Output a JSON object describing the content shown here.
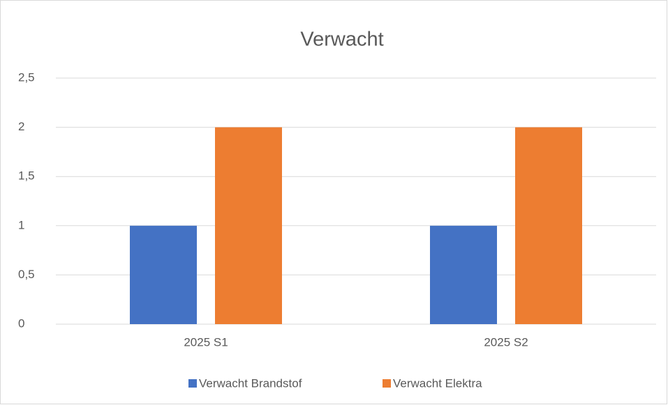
{
  "chart_data": {
    "type": "bar",
    "title": "Verwacht",
    "categories": [
      "2025 S1",
      "2025 S2"
    ],
    "series": [
      {
        "name": "Verwacht Brandstof",
        "color": "#4472c4",
        "values": [
          1,
          1
        ]
      },
      {
        "name": "Verwacht Elektra",
        "color": "#ed7d31",
        "values": [
          2,
          2
        ]
      }
    ],
    "ylim": [
      0,
      2.5
    ],
    "yticks": [
      0,
      {
        "value": 0.5,
        "label": "0,5"
      },
      1,
      {
        "value": 1.5,
        "label": "1,5"
      },
      2,
      {
        "value": 2.5,
        "label": "2,5"
      }
    ],
    "grid": true,
    "legend": "bottom"
  }
}
